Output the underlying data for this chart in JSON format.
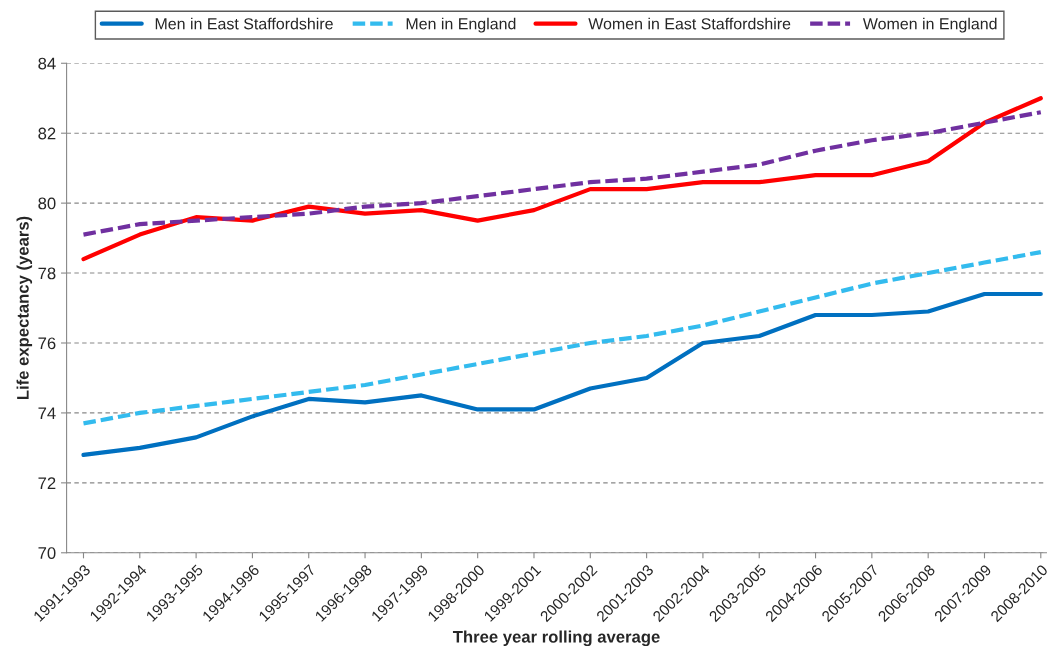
{
  "chart_data": {
    "type": "line",
    "xlabel": "Three year rolling average",
    "ylabel": "Life expectancy (years)",
    "categories": [
      "1991-1993",
      "1992-1994",
      "1993-1995",
      "1994-1996",
      "1995-1997",
      "1996-1998",
      "1997-1999",
      "1998-2000",
      "1999-2001",
      "2000-2002",
      "2001-2003",
      "2002-2004",
      "2003-2005",
      "2004-2006",
      "2005-2007",
      "2006-2008",
      "2007-2009",
      "2008-2010"
    ],
    "series": [
      {
        "name": "Men in East Staffordshire",
        "color": "#0070c0",
        "line_style": "solid",
        "values": [
          72.8,
          73.0,
          73.3,
          73.9,
          74.4,
          74.3,
          74.5,
          74.1,
          74.1,
          74.7,
          75.0,
          76.0,
          76.2,
          76.8,
          76.8,
          76.9,
          77.4,
          77.4
        ]
      },
      {
        "name": "Men in England",
        "color": "#33bbee",
        "line_style": "dashed",
        "values": [
          73.7,
          74.0,
          74.2,
          74.4,
          74.6,
          74.8,
          75.1,
          75.4,
          75.7,
          76.0,
          76.2,
          76.5,
          76.9,
          77.3,
          77.7,
          78.0,
          78.3,
          78.6
        ]
      },
      {
        "name": "Women in East Staffordshire",
        "color": "#ff0000",
        "line_style": "solid",
        "values": [
          78.4,
          79.1,
          79.6,
          79.5,
          79.9,
          79.7,
          79.8,
          79.5,
          79.8,
          80.4,
          80.4,
          80.6,
          80.6,
          80.8,
          80.8,
          81.2,
          82.3,
          83.0
        ]
      },
      {
        "name": "Women in England",
        "color": "#7030a0",
        "line_style": "dashed",
        "values": [
          79.1,
          79.4,
          79.5,
          79.6,
          79.7,
          79.9,
          80.0,
          80.2,
          80.4,
          80.6,
          80.7,
          80.9,
          81.1,
          81.5,
          81.8,
          82.0,
          82.3,
          82.6
        ]
      }
    ],
    "ylim": [
      70,
      84
    ],
    "yticks": [
      70,
      72,
      74,
      76,
      78,
      80,
      82,
      84
    ],
    "grid": "y",
    "legend": "top"
  }
}
